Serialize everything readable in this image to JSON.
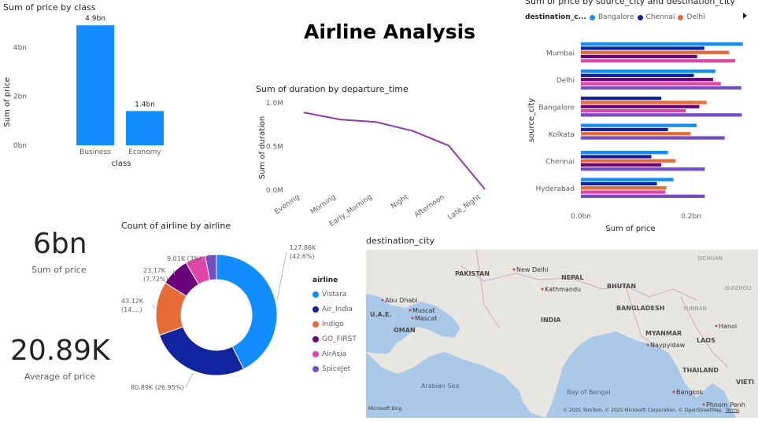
{
  "dashboard": {
    "title": "Airline Analysis"
  },
  "cards": {
    "sum_price": {
      "value": "6bn",
      "label": "Sum of price"
    },
    "avg_price": {
      "value": "20.89K",
      "label": "Average of price"
    }
  },
  "colors": {
    "blue": "#118dff",
    "navy": "#12239e",
    "orange": "#e66c37",
    "purple": "#6b007b",
    "pink": "#e044a7",
    "violet": "#744ec2",
    "line": "#8e3aa8"
  },
  "chart_data": [
    {
      "id": "price_by_class",
      "type": "bar",
      "title": "Sum of price by class",
      "xlabel": "class",
      "ylabel": "Sum of price",
      "categories": [
        "Business",
        "Economy"
      ],
      "values": [
        4.9,
        1.4
      ],
      "data_labels": [
        "4.9bn",
        "1.4bn"
      ],
      "yticks": [
        "0bn",
        "2bn",
        "4bn"
      ],
      "ytick_values": [
        0,
        2,
        4
      ],
      "ylim": [
        0,
        5.1
      ]
    },
    {
      "id": "duration_by_departure",
      "type": "line",
      "title": "Sum of duration by departure_time",
      "xlabel": "",
      "ylabel": "Sum of duration",
      "categories": [
        "Evening",
        "Morning",
        "Early_Morning",
        "Night",
        "Afternoon",
        "Late_Night"
      ],
      "values": [
        0.89,
        0.81,
        0.78,
        0.68,
        0.51,
        0.01
      ],
      "yticks": [
        "0.0M",
        "0.5M",
        "1.0M"
      ],
      "ytick_values": [
        0,
        0.5,
        1.0
      ],
      "ylim": [
        0,
        1.0
      ]
    },
    {
      "id": "price_by_source_dest",
      "type": "bar",
      "orientation": "horizontal",
      "title": "Sum of price by source_city and destination_city",
      "xlabel": "Sum of price",
      "ylabel": "source_city",
      "legend_title": "destination_c...",
      "legend": [
        "Bangalore",
        "Chennai",
        "Delhi"
      ],
      "categories": [
        "Mumbai",
        "Delhi",
        "Bangalore",
        "Kolkata",
        "Chennai",
        "Hyderabad"
      ],
      "series_order": [
        "Bangalore",
        "Chennai",
        "Delhi",
        "Hyderabad",
        "Kolkata",
        "Mumbai"
      ],
      "values": [
        [
          0.294,
          0.224,
          0.269,
          0.211,
          0.28,
          0
        ],
        [
          0.244,
          0.205,
          0,
          0.24,
          0.254,
          0.291
        ],
        [
          0,
          0.146,
          0.228,
          0.215,
          0.19,
          0.292
        ],
        [
          0.21,
          0.158,
          0.199,
          0,
          0,
          0.261
        ],
        [
          0.158,
          0.128,
          0.172,
          0.146,
          0,
          0.225
        ],
        [
          0.168,
          0.138,
          0.155,
          0,
          0.153,
          0.225
        ]
      ],
      "xticks": [
        "0.0bn",
        "0.2bn"
      ],
      "xtick_values": [
        0,
        0.2
      ],
      "xlim": [
        0,
        0.3
      ]
    },
    {
      "id": "airline_count",
      "type": "pie",
      "title": "Count of airline by airline",
      "legend_title": "airline",
      "labels": [
        "Vistara",
        "Air_India",
        "Indigo",
        "GO_FIRST",
        "AirAsia",
        "SpiceJet"
      ],
      "values": [
        127.86,
        80.89,
        43.12,
        23.17,
        16.1,
        9.01
      ],
      "data_labels": [
        [
          "127.86K",
          "(42.6%)"
        ],
        [
          "80.89K (26.95%)"
        ],
        [
          "43.12K",
          "(14....)"
        ],
        [
          "23.17K",
          "(7.72%)"
        ],
        [],
        [
          "9.01K (3%)"
        ]
      ]
    }
  ],
  "map": {
    "title": "destination_city",
    "attribution": "© 2025 TomTom, © 2025 Microsoft Corporation, © OpenStreetMap",
    "terms": "Terms",
    "logo": "Microsoft Bing",
    "labels": [
      {
        "text": "SICHUAN",
        "kind": "region"
      },
      {
        "text": "PAKISTAN",
        "kind": "country"
      },
      {
        "text": "New Delhi",
        "kind": "city"
      },
      {
        "text": "NEPAL",
        "kind": "country"
      },
      {
        "text": "BHUTAN",
        "kind": "country"
      },
      {
        "text": "GUIZHOU",
        "kind": "region"
      },
      {
        "text": "Kathmandu",
        "kind": "city"
      },
      {
        "text": "Abu Dhabi",
        "kind": "city"
      },
      {
        "text": "U.A.E.",
        "kind": "country"
      },
      {
        "text": "Muscat",
        "kind": "city"
      },
      {
        "text": "Mascat",
        "kind": "city"
      },
      {
        "text": "INDIA",
        "kind": "country"
      },
      {
        "text": "BANGLADESH",
        "kind": "country"
      },
      {
        "text": "YUNNAN",
        "kind": "region"
      },
      {
        "text": "OMAN",
        "kind": "country"
      },
      {
        "text": "MYANMAR",
        "kind": "country"
      },
      {
        "text": "Hanoi",
        "kind": "city"
      },
      {
        "text": "Naypyidaw",
        "kind": "city"
      },
      {
        "text": "LAOS",
        "kind": "country"
      },
      {
        "text": "THAILAND",
        "kind": "country"
      },
      {
        "text": "Arabian Sea",
        "kind": "sea"
      },
      {
        "text": "Bay of Bengal",
        "kind": "sea"
      },
      {
        "text": "Bangkok",
        "kind": "city"
      },
      {
        "text": "VIETI",
        "kind": "country"
      },
      {
        "text": "Phnom Penh",
        "kind": "city"
      }
    ]
  }
}
